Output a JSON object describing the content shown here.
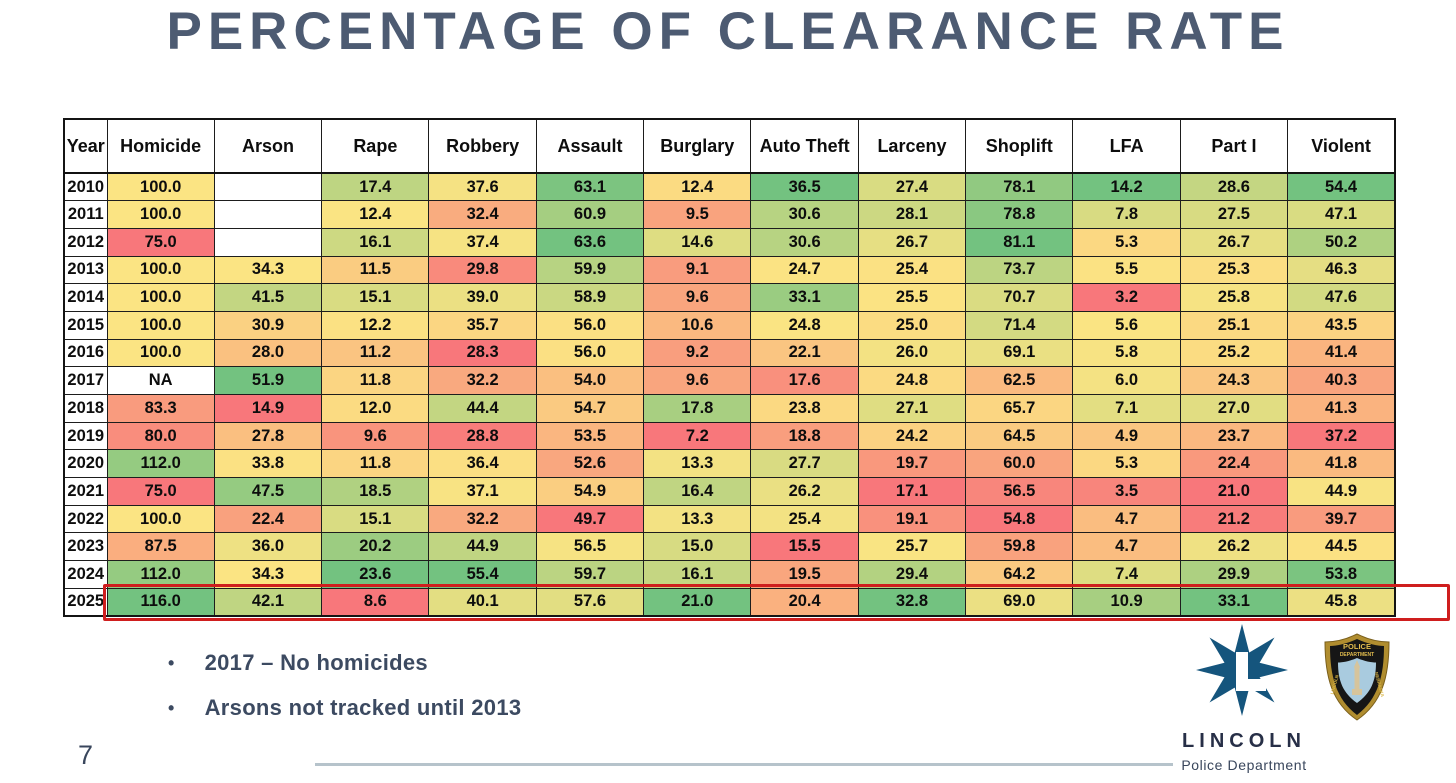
{
  "title": "PERCENTAGE OF CLEARANCE RATE",
  "table": {
    "columns": [
      "Year",
      "Homicide",
      "Arson",
      "Rape",
      "Robbery",
      "Assault",
      "Burglary",
      "Auto Theft",
      "Larceny",
      "Shoplift",
      "LFA",
      "Part I",
      "Violent"
    ],
    "rows": [
      {
        "year": "2010",
        "values": [
          "100.0",
          "",
          "17.4",
          "37.6",
          "63.1",
          "12.4",
          "36.5",
          "27.4",
          "78.1",
          "14.2",
          "28.6",
          "54.4"
        ]
      },
      {
        "year": "2011",
        "values": [
          "100.0",
          "",
          "12.4",
          "32.4",
          "60.9",
          "9.5",
          "30.6",
          "28.1",
          "78.8",
          "7.8",
          "27.5",
          "47.1"
        ]
      },
      {
        "year": "2012",
        "values": [
          "75.0",
          "",
          "16.1",
          "37.4",
          "63.6",
          "14.6",
          "30.6",
          "26.7",
          "81.1",
          "5.3",
          "26.7",
          "50.2"
        ]
      },
      {
        "year": "2013",
        "values": [
          "100.0",
          "34.3",
          "11.5",
          "29.8",
          "59.9",
          "9.1",
          "24.7",
          "25.4",
          "73.7",
          "5.5",
          "25.3",
          "46.3"
        ]
      },
      {
        "year": "2014",
        "values": [
          "100.0",
          "41.5",
          "15.1",
          "39.0",
          "58.9",
          "9.6",
          "33.1",
          "25.5",
          "70.7",
          "3.2",
          "25.8",
          "47.6"
        ]
      },
      {
        "year": "2015",
        "values": [
          "100.0",
          "30.9",
          "12.2",
          "35.7",
          "56.0",
          "10.6",
          "24.8",
          "25.0",
          "71.4",
          "5.6",
          "25.1",
          "43.5"
        ]
      },
      {
        "year": "2016",
        "values": [
          "100.0",
          "28.0",
          "11.2",
          "28.3",
          "56.0",
          "9.2",
          "22.1",
          "26.0",
          "69.1",
          "5.8",
          "25.2",
          "41.4"
        ]
      },
      {
        "year": "2017",
        "values": [
          "NA",
          "51.9",
          "11.8",
          "32.2",
          "54.0",
          "9.6",
          "17.6",
          "24.8",
          "62.5",
          "6.0",
          "24.3",
          "40.3"
        ]
      },
      {
        "year": "2018",
        "values": [
          "83.3",
          "14.9",
          "12.0",
          "44.4",
          "54.7",
          "17.8",
          "23.8",
          "27.1",
          "65.7",
          "7.1",
          "27.0",
          "41.3"
        ]
      },
      {
        "year": "2019",
        "values": [
          "80.0",
          "27.8",
          "9.6",
          "28.8",
          "53.5",
          "7.2",
          "18.8",
          "24.2",
          "64.5",
          "4.9",
          "23.7",
          "37.2"
        ]
      },
      {
        "year": "2020",
        "values": [
          "112.0",
          "33.8",
          "11.8",
          "36.4",
          "52.6",
          "13.3",
          "27.7",
          "19.7",
          "60.0",
          "5.3",
          "22.4",
          "41.8"
        ]
      },
      {
        "year": "2021",
        "values": [
          "75.0",
          "47.5",
          "18.5",
          "37.1",
          "54.9",
          "16.4",
          "26.2",
          "17.1",
          "56.5",
          "3.5",
          "21.0",
          "44.9"
        ]
      },
      {
        "year": "2022",
        "values": [
          "100.0",
          "22.4",
          "15.1",
          "32.2",
          "49.7",
          "13.3",
          "25.4",
          "19.1",
          "54.8",
          "4.7",
          "21.2",
          "39.7"
        ]
      },
      {
        "year": "2023",
        "values": [
          "87.5",
          "36.0",
          "20.2",
          "44.9",
          "56.5",
          "15.0",
          "15.5",
          "25.7",
          "59.8",
          "4.7",
          "26.2",
          "44.5"
        ]
      },
      {
        "year": "2024",
        "values": [
          "112.0",
          "34.3",
          "23.6",
          "55.4",
          "59.7",
          "16.1",
          "19.5",
          "29.4",
          "64.2",
          "7.4",
          "29.9",
          "53.8"
        ]
      },
      {
        "year": "2025",
        "values": [
          "116.0",
          "42.1",
          "8.6",
          "40.1",
          "57.6",
          "21.0",
          "20.4",
          "32.8",
          "69.0",
          "10.9",
          "33.1",
          "45.8"
        ]
      }
    ],
    "highlighted_year": "2025",
    "missing_display": "NA"
  },
  "chart_data": {
    "type": "heatmap",
    "title": "PERCENTAGE OF CLEARANCE RATE",
    "y_categories": [
      "2010",
      "2011",
      "2012",
      "2013",
      "2014",
      "2015",
      "2016",
      "2017",
      "2018",
      "2019",
      "2020",
      "2021",
      "2022",
      "2023",
      "2024",
      "2025"
    ],
    "x_categories": [
      "Homicide",
      "Arson",
      "Rape",
      "Robbery",
      "Assault",
      "Burglary",
      "Auto Theft",
      "Larceny",
      "Shoplift",
      "LFA",
      "Part I",
      "Violent"
    ],
    "values": [
      [
        100.0,
        null,
        17.4,
        37.6,
        63.1,
        12.4,
        36.5,
        27.4,
        78.1,
        14.2,
        28.6,
        54.4
      ],
      [
        100.0,
        null,
        12.4,
        32.4,
        60.9,
        9.5,
        30.6,
        28.1,
        78.8,
        7.8,
        27.5,
        47.1
      ],
      [
        75.0,
        null,
        16.1,
        37.4,
        63.6,
        14.6,
        30.6,
        26.7,
        81.1,
        5.3,
        26.7,
        50.2
      ],
      [
        100.0,
        34.3,
        11.5,
        29.8,
        59.9,
        9.1,
        24.7,
        25.4,
        73.7,
        5.5,
        25.3,
        46.3
      ],
      [
        100.0,
        41.5,
        15.1,
        39.0,
        58.9,
        9.6,
        33.1,
        25.5,
        70.7,
        3.2,
        25.8,
        47.6
      ],
      [
        100.0,
        30.9,
        12.2,
        35.7,
        56.0,
        10.6,
        24.8,
        25.0,
        71.4,
        5.6,
        25.1,
        43.5
      ],
      [
        100.0,
        28.0,
        11.2,
        28.3,
        56.0,
        9.2,
        22.1,
        26.0,
        69.1,
        5.8,
        25.2,
        41.4
      ],
      [
        null,
        51.9,
        11.8,
        32.2,
        54.0,
        9.6,
        17.6,
        24.8,
        62.5,
        6.0,
        24.3,
        40.3
      ],
      [
        83.3,
        14.9,
        12.0,
        44.4,
        54.7,
        17.8,
        23.8,
        27.1,
        65.7,
        7.1,
        27.0,
        41.3
      ],
      [
        80.0,
        27.8,
        9.6,
        28.8,
        53.5,
        7.2,
        18.8,
        24.2,
        64.5,
        4.9,
        23.7,
        37.2
      ],
      [
        112.0,
        33.8,
        11.8,
        36.4,
        52.6,
        13.3,
        27.7,
        19.7,
        60.0,
        5.3,
        22.4,
        41.8
      ],
      [
        75.0,
        47.5,
        18.5,
        37.1,
        54.9,
        16.4,
        26.2,
        17.1,
        56.5,
        3.5,
        21.0,
        44.9
      ],
      [
        100.0,
        22.4,
        15.1,
        32.2,
        49.7,
        13.3,
        25.4,
        19.1,
        54.8,
        4.7,
        21.2,
        39.7
      ],
      [
        87.5,
        36.0,
        20.2,
        44.9,
        56.5,
        15.0,
        15.5,
        25.7,
        59.8,
        4.7,
        26.2,
        44.5
      ],
      [
        112.0,
        34.3,
        23.6,
        55.4,
        59.7,
        16.1,
        19.5,
        29.4,
        64.2,
        7.4,
        29.9,
        53.8
      ],
      [
        116.0,
        42.1,
        8.6,
        40.1,
        57.6,
        21.0,
        20.4,
        32.8,
        69.0,
        10.9,
        33.1,
        45.8
      ]
    ],
    "color_scale": "per-column 3-color scale: min=red, median=yellow, max=green; blank/NA cells white",
    "highlighted_row": "2025",
    "annotations": [
      "2017 – No homicides",
      "Arsons not tracked until 2013"
    ]
  },
  "colors": {
    "scale_min": "#f8777b",
    "scale_mid": "#fbe483",
    "scale_max": "#73c280",
    "missing_cell": "#ffffff",
    "highlight_border": "#cf1e1e",
    "title_text": "#4d5b72",
    "notes_text": "#3c4a61",
    "logo_blue": "#15557d",
    "badge_gold": "#b08d2f",
    "rule_gray": "#b6c3cb"
  },
  "notes": [
    {
      "text": "2017 – No homicides"
    },
    {
      "text": "Arsons not tracked until 2013"
    }
  ],
  "page_number": "7",
  "footer": {
    "lincoln_name": "LINCOLN",
    "lincoln_sub": "Police Department",
    "badge_line1": "POLICE",
    "badge_line2": "DEPARTMENT",
    "badge_side_left": "LINCOLN",
    "badge_side_right": "NEBRASKA"
  }
}
